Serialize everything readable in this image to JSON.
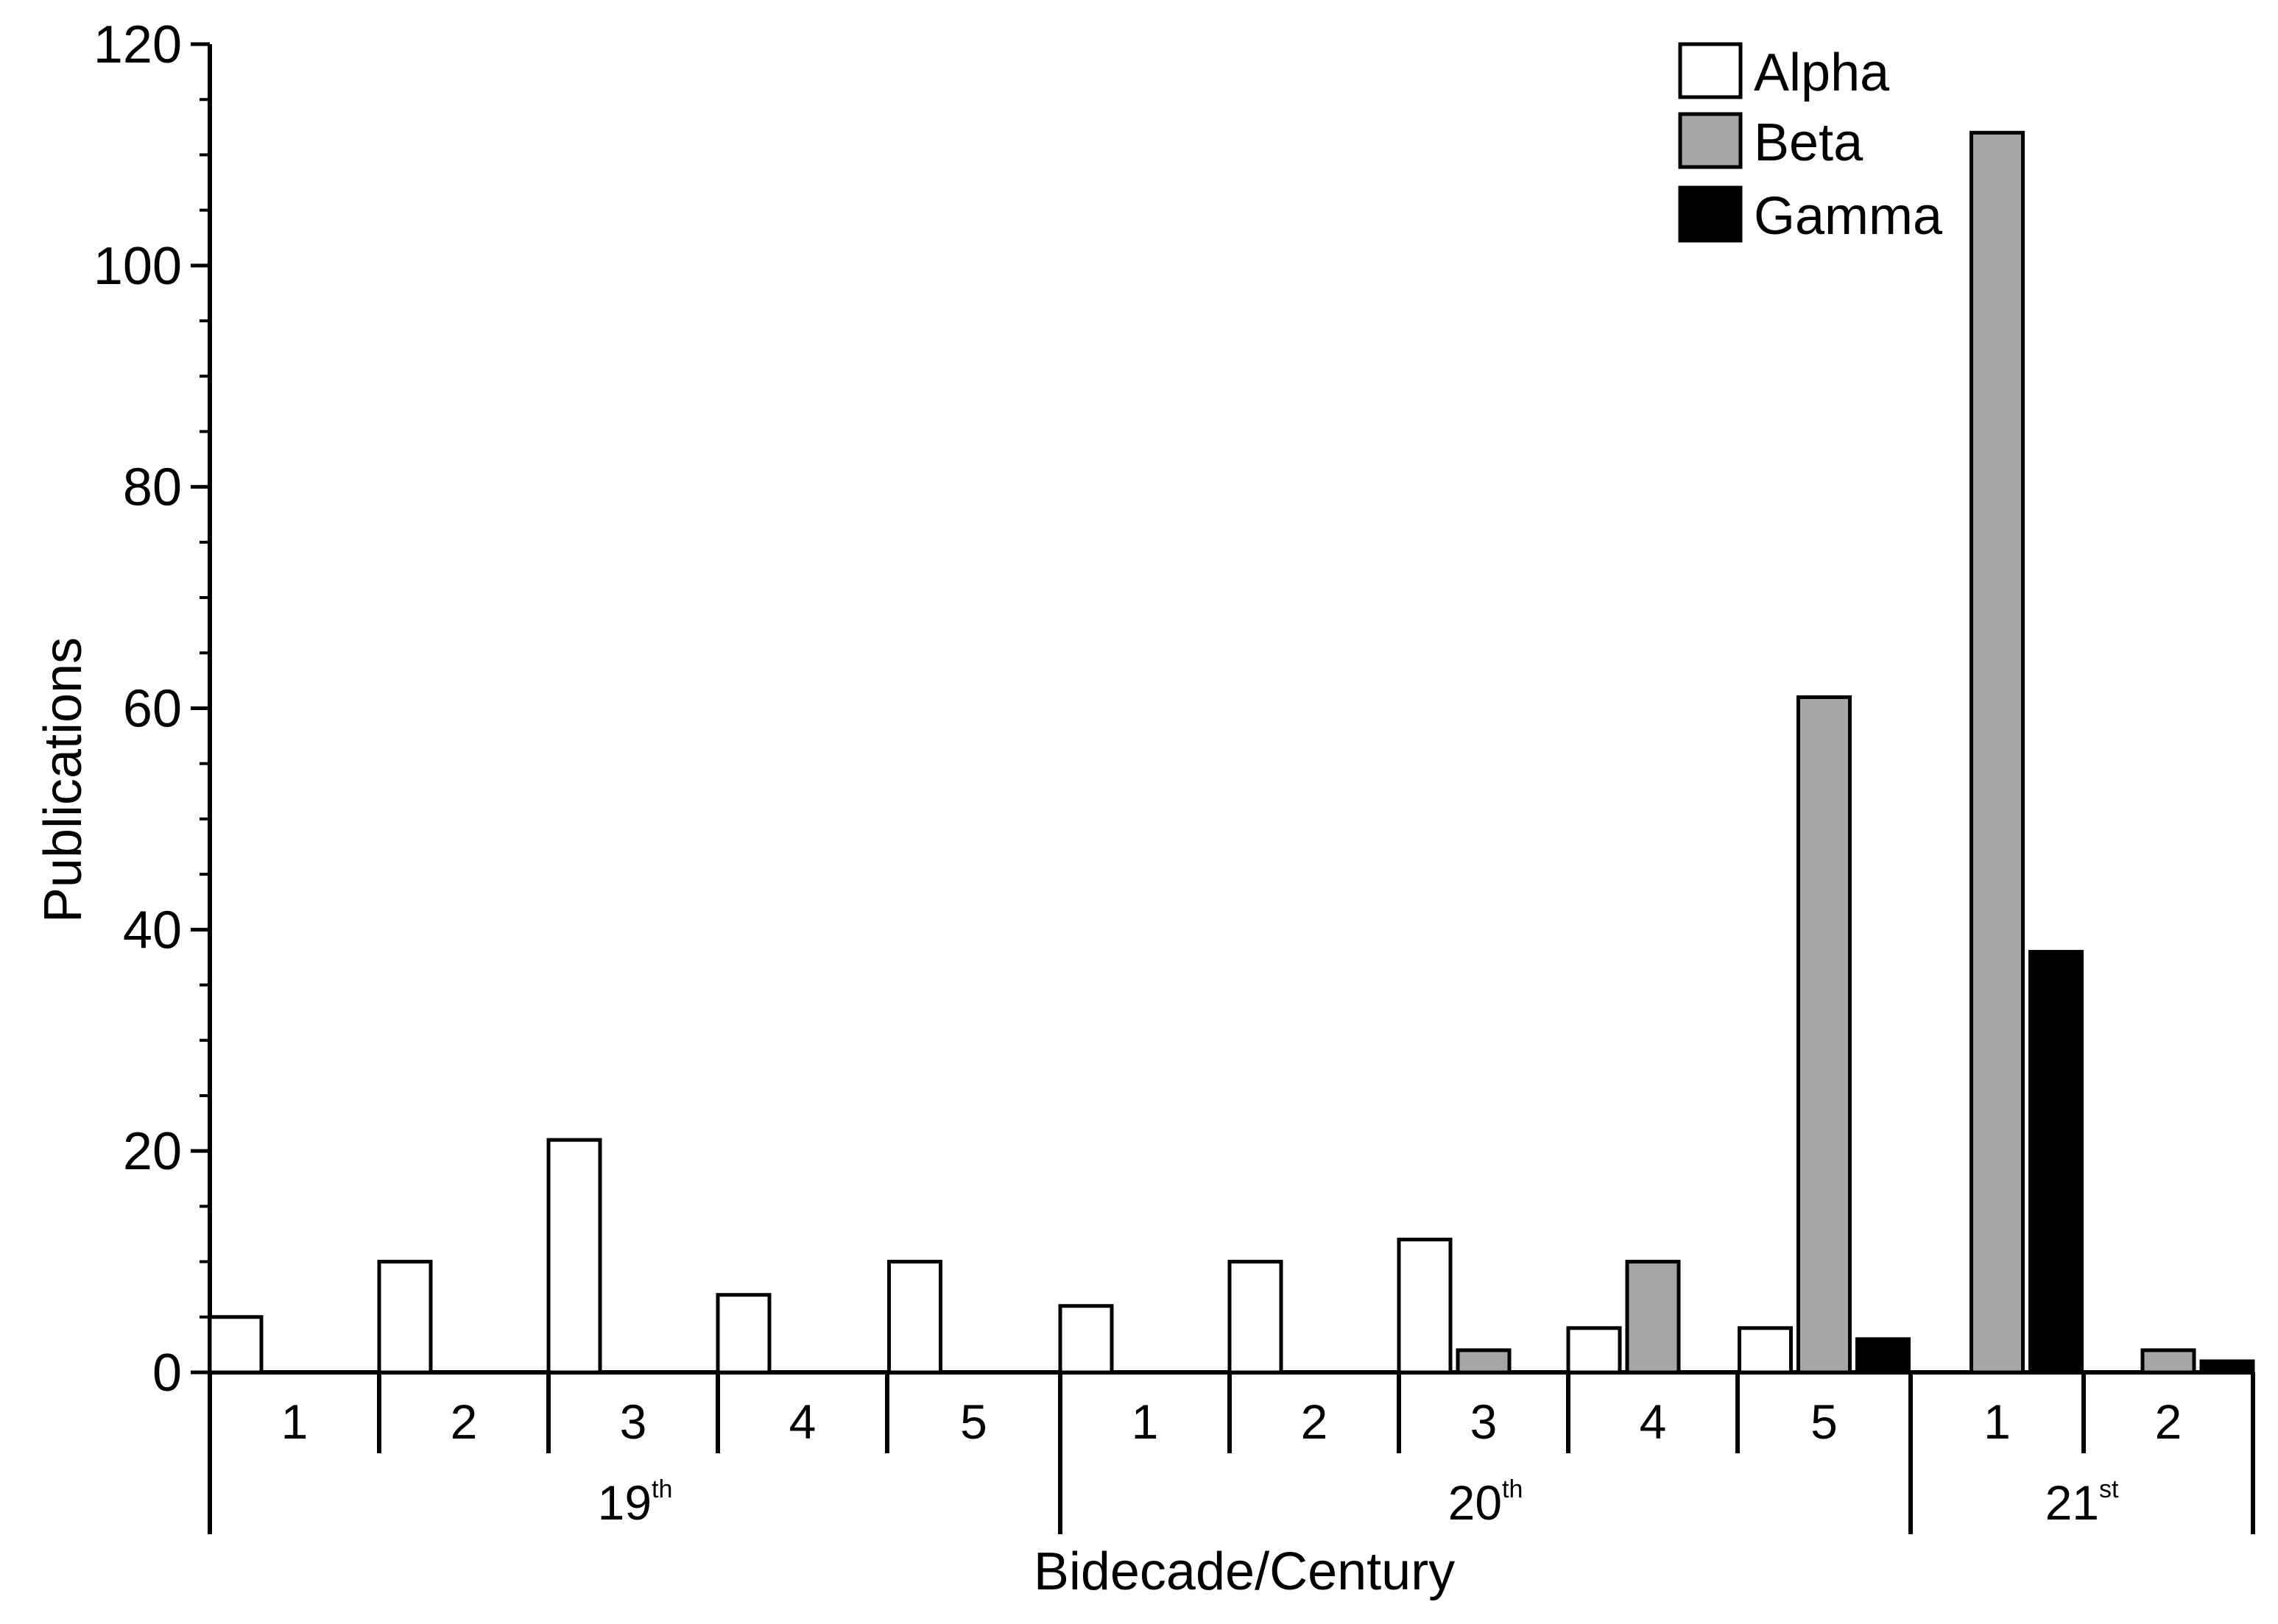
{
  "chart_data": {
    "type": "bar",
    "xlabel": "Bidecade/Century",
    "ylabel": "Publications",
    "ylim": [
      0,
      120
    ],
    "yticks": [
      "0",
      "20",
      "40",
      "60",
      "80",
      "100",
      "120"
    ],
    "grid": false,
    "legend_position": "top-right",
    "categories": [
      "1",
      "2",
      "3",
      "4",
      "5",
      "1",
      "2",
      "3",
      "4",
      "5",
      "1",
      "2"
    ],
    "centuries": [
      {
        "base": "19",
        "suffix": "th",
        "span": 5
      },
      {
        "base": "20",
        "suffix": "th",
        "span": 5
      },
      {
        "base": "21",
        "suffix": "st",
        "span": 2
      }
    ],
    "series": [
      {
        "name": "Alpha",
        "color": "#ffffff",
        "values": [
          5,
          10,
          21,
          7,
          10,
          6,
          10,
          12,
          4,
          4,
          0,
          0
        ]
      },
      {
        "name": "Beta",
        "color": "#a6a6a6",
        "values": [
          0,
          0,
          0,
          0,
          0,
          0,
          0,
          2,
          10,
          61,
          112,
          2
        ]
      },
      {
        "name": "Gamma",
        "color": "#000000",
        "values": [
          0,
          0,
          0,
          0,
          0,
          0,
          0,
          0,
          0,
          3,
          38,
          1
        ]
      }
    ]
  }
}
